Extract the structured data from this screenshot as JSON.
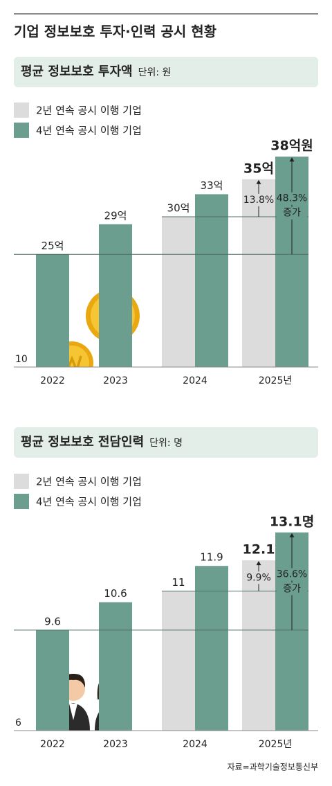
{
  "title": "기업 정보보호 투자·인력 공시 현황",
  "source": "자료=과학기술정보통신부",
  "chart_data": [
    {
      "type": "bar",
      "title": "평균 정보보호 투자액",
      "unit": "단위: 원",
      "categories": [
        "2022",
        "2023",
        "2024",
        "2025년"
      ],
      "series": [
        {
          "name": "2년 연속 공시 이행 기업",
          "color": "#dcdcdc",
          "values": [
            null,
            null,
            30,
            35
          ],
          "value_labels": [
            null,
            null,
            "30억",
            "35억"
          ]
        },
        {
          "name": "4년 연속 공시 이행 기업",
          "color": "#6b9e8e",
          "values": [
            25,
            29,
            33,
            38
          ],
          "value_labels": [
            "25억",
            "29억",
            "33억",
            "38억원"
          ]
        }
      ],
      "ylim": [
        10,
        40
      ],
      "yticks": [
        10
      ],
      "annotations": [
        "13.8%",
        "48.3%",
        "증가"
      ]
    },
    {
      "type": "bar",
      "title": "평균 정보보호 전담인력",
      "unit": "단위: 명",
      "categories": [
        "2022",
        "2023",
        "2024",
        "2025년"
      ],
      "series": [
        {
          "name": "2년 연속 공시 이행 기업",
          "color": "#dcdcdc",
          "values": [
            null,
            null,
            11,
            12.1
          ]
        },
        {
          "name": "4년 연속 공시 이행 기업",
          "color": "#6b9e8e",
          "values": [
            9.6,
            10.6,
            11.9,
            13.1
          ],
          "value_labels": [
            "9.6",
            "10.6",
            "11.9",
            "13.1명"
          ]
        }
      ],
      "ylim": [
        6,
        13.6
      ],
      "yticks": [
        6
      ],
      "annotations": [
        "9.9%",
        "36.6%",
        "증가"
      ]
    }
  ]
}
